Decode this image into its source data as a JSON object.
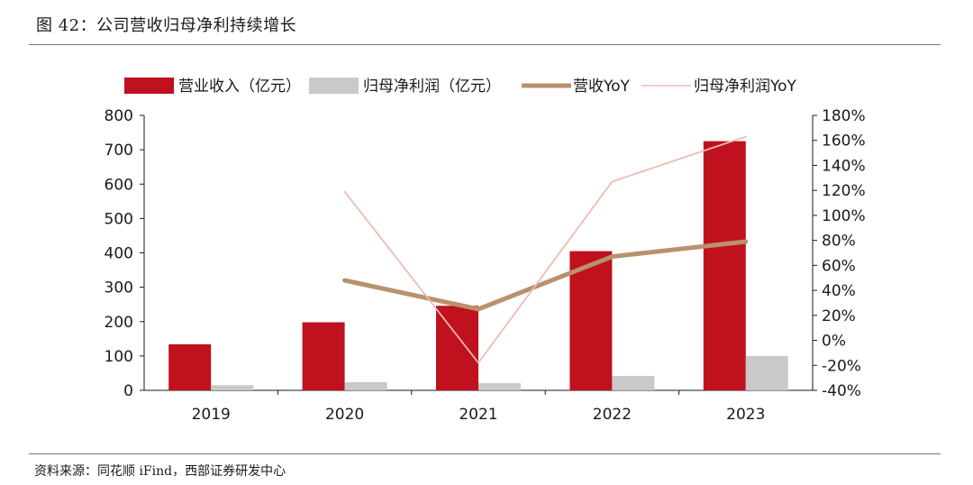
{
  "figure_title": "图 42：公司营收归母净利持续增长",
  "source_note": "资料来源：同花顺 iFind，西部证券研发中心",
  "colors": {
    "revenue_bar": "#c0111f",
    "profit_bar": "#c9c9c9",
    "revenue_yoy_line": "#b8926c",
    "profit_yoy_line": "#eebbb2"
  },
  "chart_data": {
    "type": "bar",
    "title": "公司营收归母净利持续增长",
    "categories": [
      "2019",
      "2020",
      "2021",
      "2022",
      "2023"
    ],
    "series": [
      {
        "name": "营业收入（亿元）",
        "kind": "bar",
        "axis": "left",
        "values": [
          134,
          198,
          246,
          405,
          725
        ]
      },
      {
        "name": "归母净利润（亿元）",
        "kind": "bar",
        "axis": "left",
        "values": [
          15,
          24,
          21,
          42,
          100
        ]
      },
      {
        "name": "营收YoY",
        "kind": "line",
        "axis": "right",
        "values": [
          null,
          48,
          25,
          67,
          79
        ]
      },
      {
        "name": "归母净利润YoY",
        "kind": "line",
        "axis": "right",
        "values": [
          null,
          119,
          -18,
          127,
          163
        ]
      }
    ],
    "left_axis": {
      "ylim": [
        0,
        800
      ],
      "ticks": [
        "0",
        "100",
        "200",
        "300",
        "400",
        "500",
        "600",
        "700",
        "800"
      ]
    },
    "right_axis": {
      "ylim": [
        -40,
        180
      ],
      "ticks": [
        "-40%",
        "-20%",
        "0%",
        "20%",
        "40%",
        "60%",
        "80%",
        "100%",
        "120%",
        "140%",
        "160%",
        "180%"
      ]
    },
    "legend_position": "top",
    "grid": false
  }
}
